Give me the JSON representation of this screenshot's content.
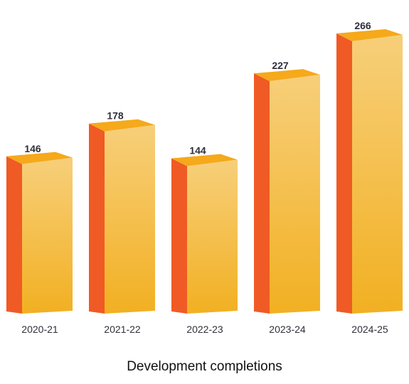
{
  "chart_data": {
    "type": "bar",
    "title": "Development completions",
    "categories": [
      "2020-21",
      "2021-22",
      "2022-23",
      "2023-24",
      "2024-25"
    ],
    "values": [
      146,
      178,
      144,
      227,
      266
    ],
    "ylim": [
      0,
      266
    ],
    "grid": false,
    "legend": "none",
    "colors": {
      "front_top": "#f7cf7a",
      "front_bottom": "#f2b022",
      "side": "#f05a24",
      "top": "#f5a91b",
      "text": "#2f2f3a"
    }
  }
}
